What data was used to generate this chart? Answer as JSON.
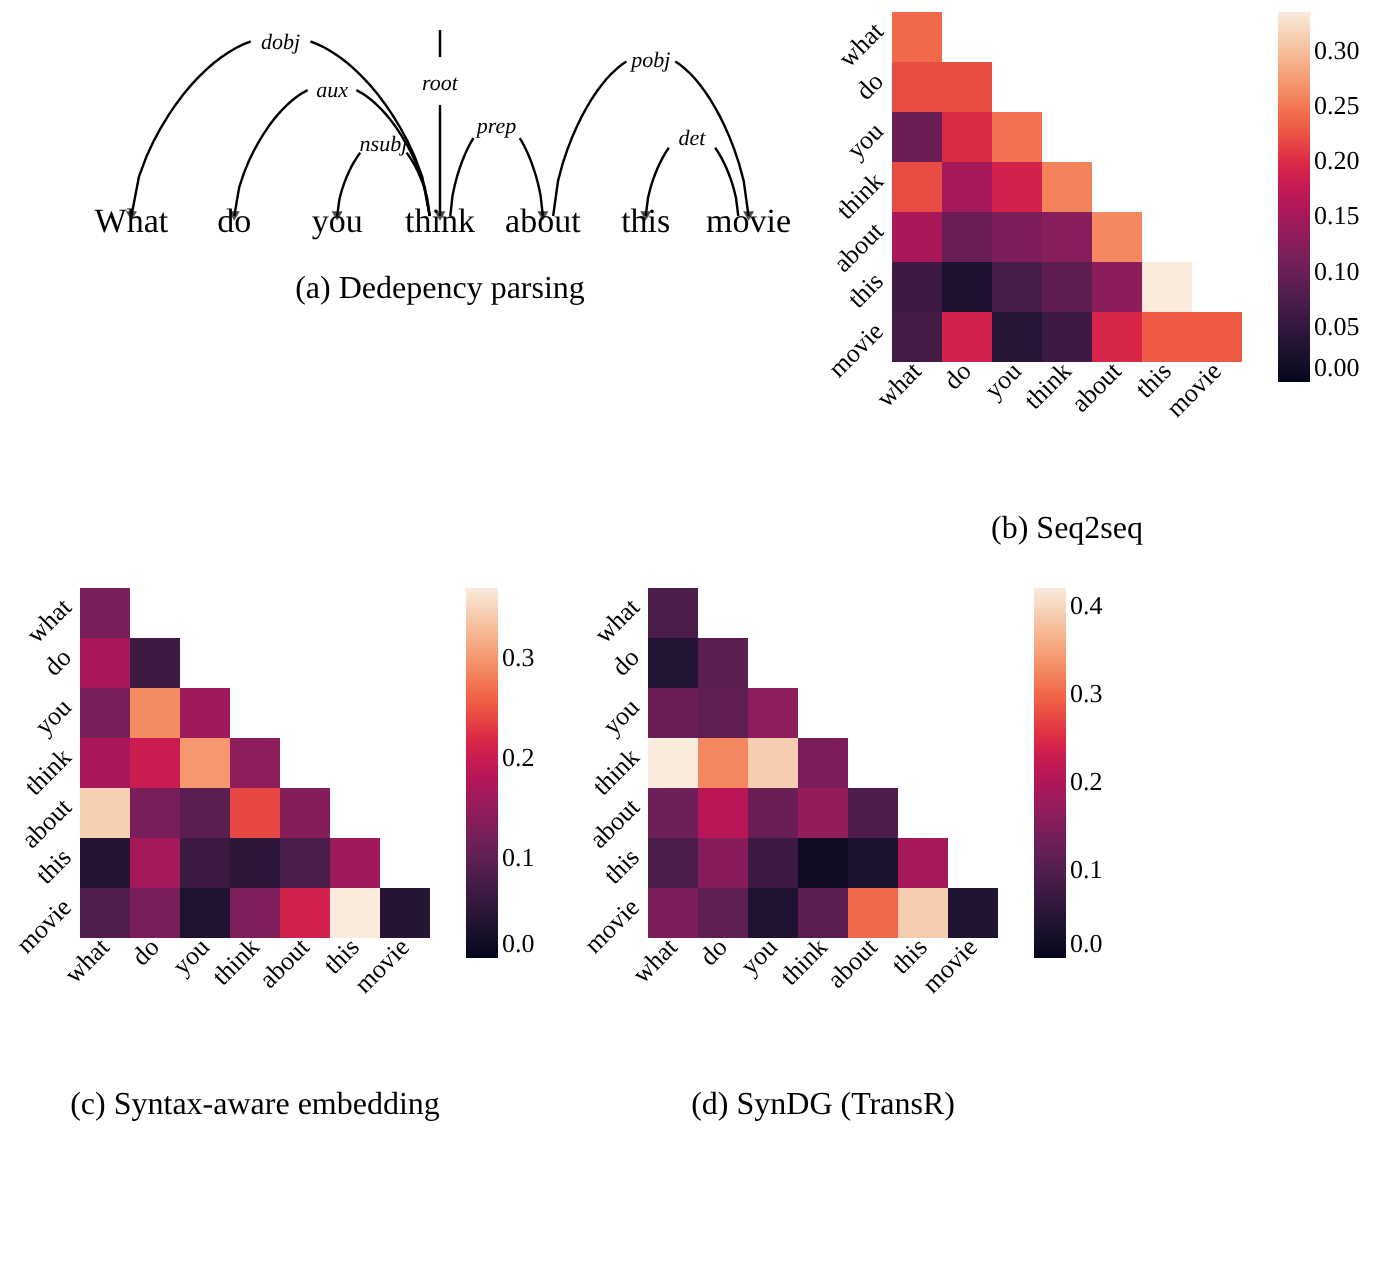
{
  "chart_data": [
    {
      "type": "other",
      "title": "(a)  Dedepency parsing",
      "categories": [
        "What",
        "do",
        "you",
        "think",
        "about",
        "this",
        "movie"
      ],
      "annotations": [
        "dobj",
        "aux",
        "nsubj",
        "root",
        "prep",
        "pobj",
        "det"
      ]
    },
    {
      "type": "heatmap",
      "title": "(b)  Seq2seq",
      "categories": [
        "what",
        "do",
        "you",
        "think",
        "about",
        "this",
        "movie"
      ],
      "y_categories": [
        "what",
        "do",
        "you",
        "think",
        "about",
        "this",
        "movie"
      ],
      "cells": [
        [
          0.24,
          null,
          null,
          null,
          null,
          null,
          null
        ],
        [
          0.22,
          0.22,
          null,
          null,
          null,
          null,
          null
        ],
        [
          0.1,
          0.2,
          0.245,
          null,
          null,
          null,
          null
        ],
        [
          0.22,
          0.15,
          0.19,
          0.255,
          null,
          null,
          null
        ],
        [
          0.155,
          0.1,
          0.115,
          0.125,
          0.26,
          null,
          null
        ],
        [
          0.06,
          0.03,
          0.07,
          0.09,
          0.13,
          0.335,
          null
        ],
        [
          0.065,
          0.19,
          0.04,
          0.06,
          0.195,
          0.23,
          0.23
        ]
      ],
      "clim": [
        0,
        0.335
      ],
      "cticks": [
        {
          "value": 0,
          "label": "0.00"
        },
        {
          "value": 0.05,
          "label": "0.05"
        },
        {
          "value": 0.1,
          "label": "0.10"
        },
        {
          "value": 0.15,
          "label": "0.15"
        },
        {
          "value": 0.2,
          "label": "0.20"
        },
        {
          "value": 0.25,
          "label": "0.25"
        },
        {
          "value": 0.3,
          "label": "0.30"
        }
      ]
    },
    {
      "type": "heatmap",
      "title": "(c)  Syntax-aware embedding",
      "categories": [
        "what",
        "do",
        "you",
        "think",
        "about",
        "this",
        "movie"
      ],
      "y_categories": [
        "what",
        "do",
        "you",
        "think",
        "about",
        "this",
        "movie"
      ],
      "cells": [
        [
          0.125,
          null,
          null,
          null,
          null,
          null,
          null
        ],
        [
          0.17,
          0.065,
          null,
          null,
          null,
          null,
          null
        ],
        [
          0.125,
          0.29,
          0.16,
          null,
          null,
          null,
          null
        ],
        [
          0.17,
          0.2,
          0.3,
          0.145,
          null,
          null,
          null
        ],
        [
          0.345,
          0.125,
          0.095,
          0.24,
          0.135,
          null,
          null
        ],
        [
          0.04,
          0.165,
          0.065,
          0.05,
          0.08,
          0.16,
          null
        ],
        [
          0.085,
          0.125,
          0.035,
          0.13,
          0.21,
          0.37,
          0.04
        ]
      ],
      "clim": [
        0,
        0.37
      ],
      "cticks": [
        {
          "value": 0,
          "label": "0.0"
        },
        0.1,
        0.2,
        0.3
      ]
    },
    {
      "type": "heatmap",
      "title": "(d)  SynDG (TransR)",
      "categories": [
        "what",
        "do",
        "you",
        "think",
        "about",
        "this",
        "movie"
      ],
      "y_categories": [
        "what",
        "do",
        "you",
        "think",
        "about",
        "this",
        "movie"
      ],
      "cells": [
        [
          0.09,
          null,
          null,
          null,
          null,
          null,
          null
        ],
        [
          0.045,
          0.11,
          null,
          null,
          null,
          null,
          null
        ],
        [
          0.125,
          0.115,
          0.165,
          null,
          null,
          null,
          null
        ],
        [
          0.42,
          0.325,
          0.39,
          0.145,
          null,
          null,
          null
        ],
        [
          0.13,
          0.21,
          0.125,
          0.17,
          0.095,
          null,
          null
        ],
        [
          0.09,
          0.155,
          0.075,
          0.015,
          0.035,
          0.19,
          null
        ],
        [
          0.145,
          0.115,
          0.04,
          0.11,
          0.3,
          0.39,
          0.04
        ]
      ],
      "clim": [
        0,
        0.42
      ],
      "cticks": [
        {
          "value": 0,
          "label": "0.0"
        },
        0.1,
        0.2,
        0.3,
        0.4
      ]
    }
  ]
}
